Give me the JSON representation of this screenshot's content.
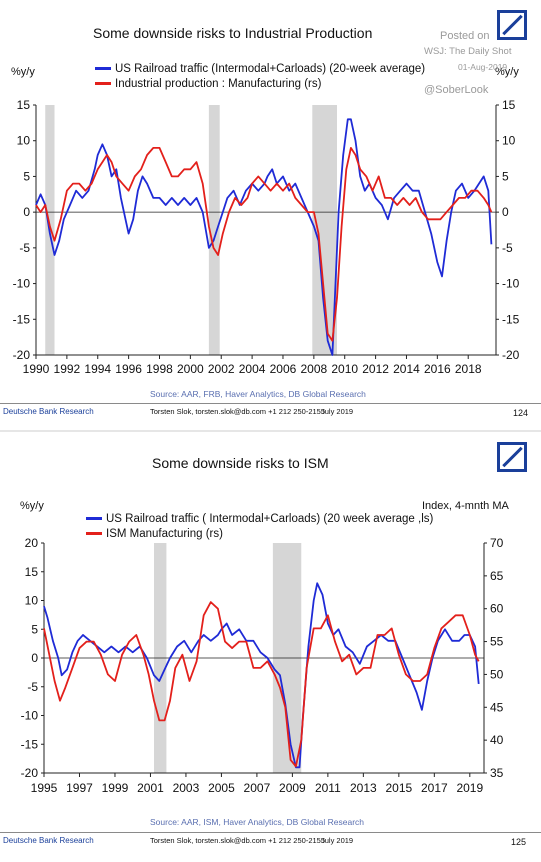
{
  "charts": [
    {
      "title": "Some downside risks to Industrial Production",
      "left_unit": "%y/y",
      "right_unit": "%y/y",
      "legend": [
        {
          "label": "US Railroad traffic (Intermodal+Carloads) (20-week average)",
          "color": "#1f2bd6"
        },
        {
          "label": "Industrial production : Manufacturing (rs)",
          "color": "#e3201b"
        }
      ],
      "source": "Source: AAR, FRB, Haver Analytics, DB Global Research",
      "footer": {
        "left": "Deutsche Bank Research",
        "middle": "Torsten Slok, torsten.slok@db.com  +1 212 250-2155",
        "date": "July 2019",
        "page": "124"
      }
    },
    {
      "title": "Some downside risks to ISM",
      "left_unit": "%y/y",
      "right_unit": "Index, 4-mnth MA",
      "legend": [
        {
          "label": "US Railroad traffic ( Intermodal+Carloads) (20 week average ,ls)",
          "color": "#1f2bd6"
        },
        {
          "label": "ISM Manufacturing (rs)",
          "color": "#e3201b"
        }
      ],
      "source": "Source: AAR, ISM, Haver Analytics, DB Global Research",
      "footer": {
        "left": "Deutsche Bank Research",
        "middle": "Torsten Slok, torsten.slok@db.com  +1 212 250-2155",
        "date": "July 2019",
        "page": "125"
      }
    }
  ],
  "watermark": {
    "line1": "Posted on",
    "line2": "WSJ: The Daily Shot",
    "line3": "01-Aug-2019",
    "line4": "@SoberLook"
  },
  "chart_data": [
    {
      "type": "line",
      "xlim": [
        1990,
        2019.8
      ],
      "ylim": [
        -20,
        15
      ],
      "ylim_right": [
        -20,
        15
      ],
      "x_ticks": [
        "1990",
        "1992",
        "1994",
        "1996",
        "1998",
        "2000",
        "2002",
        "2004",
        "2006",
        "2008",
        "2010",
        "2012",
        "2014",
        "2016",
        "2018"
      ],
      "y_ticks": [
        "-20",
        "-15",
        "-10",
        "-5",
        "0",
        "5",
        "10",
        "15"
      ],
      "y_ticks_right": [
        "-20",
        "-15",
        "-10",
        "-5",
        "0",
        "5",
        "10",
        "15"
      ],
      "recessions": [
        [
          1990.6,
          1991.2
        ],
        [
          2001.2,
          2001.9
        ],
        [
          2007.9,
          2009.5
        ]
      ],
      "series": [
        {
          "name": "US Railroad traffic (Intermodal+Carloads) (20-week average)",
          "axis": "left",
          "x": [
            1990.0,
            1990.3,
            1990.6,
            1990.9,
            1991.2,
            1991.5,
            1991.8,
            1992.2,
            1992.6,
            1993.0,
            1993.4,
            1993.8,
            1994.0,
            1994.3,
            1994.6,
            1994.9,
            1995.2,
            1995.5,
            1995.8,
            1996.0,
            1996.3,
            1996.6,
            1996.9,
            1997.2,
            1997.6,
            1998.0,
            1998.4,
            1998.8,
            1999.2,
            1999.6,
            2000.0,
            2000.4,
            2000.8,
            2001.2,
            2001.5,
            2001.8,
            2002.1,
            2002.4,
            2002.8,
            2003.2,
            2003.6,
            2004.0,
            2004.4,
            2004.8,
            2005.0,
            2005.3,
            2005.6,
            2006.0,
            2006.4,
            2006.8,
            2007.2,
            2007.6,
            2008.0,
            2008.3,
            2008.6,
            2008.9,
            2009.2,
            2009.4,
            2009.6,
            2009.9,
            2010.2,
            2010.4,
            2010.7,
            2011.0,
            2011.3,
            2011.6,
            2012.0,
            2012.4,
            2012.8,
            2013.2,
            2013.6,
            2014.0,
            2014.4,
            2014.8,
            2015.2,
            2015.6,
            2016.0,
            2016.3,
            2016.6,
            2016.9,
            2017.2,
            2017.6,
            2018.0,
            2018.4,
            2018.7,
            2019.0,
            2019.3,
            2019.5
          ],
          "y": [
            1,
            2.5,
            1,
            -3,
            -6,
            -4,
            -1,
            1,
            3,
            2,
            3,
            6,
            8,
            9.5,
            8,
            5,
            6,
            2,
            -1,
            -3,
            -1,
            3,
            5,
            4,
            2,
            2,
            1,
            2,
            1,
            2,
            1,
            2,
            0,
            -5,
            -4,
            -2,
            0,
            2,
            3,
            1,
            3,
            4,
            3,
            4,
            5,
            6,
            4,
            5,
            3,
            4,
            2,
            0,
            -2,
            -4,
            -12,
            -18,
            -20,
            -10,
            0,
            8,
            13,
            13,
            10,
            5,
            3,
            4,
            2,
            1,
            -1,
            2,
            3,
            4,
            3,
            3,
            0,
            -3,
            -7,
            -9,
            -4,
            0,
            3,
            4,
            2,
            3,
            4,
            5,
            3,
            -4.5
          ]
        },
        {
          "name": "Industrial production : Manufacturing (rs)",
          "axis": "right",
          "x": [
            1990.0,
            1990.3,
            1990.6,
            1990.9,
            1991.2,
            1991.6,
            1992.0,
            1992.4,
            1992.8,
            1993.2,
            1993.6,
            1994.0,
            1994.3,
            1994.6,
            1994.9,
            1995.2,
            1995.6,
            1996.0,
            1996.4,
            1996.8,
            1997.2,
            1997.6,
            1998.0,
            1998.4,
            1998.8,
            1999.2,
            1999.6,
            2000.0,
            2000.4,
            2000.8,
            2001.2,
            2001.5,
            2001.8,
            2002.1,
            2002.5,
            2002.9,
            2003.3,
            2003.7,
            2004.0,
            2004.4,
            2004.8,
            2005.2,
            2005.6,
            2006.0,
            2006.4,
            2006.8,
            2007.2,
            2007.6,
            2008.0,
            2008.3,
            2008.6,
            2008.9,
            2009.2,
            2009.5,
            2009.8,
            2010.1,
            2010.4,
            2010.7,
            2011.0,
            2011.4,
            2011.8,
            2012.2,
            2012.6,
            2013.0,
            2013.4,
            2013.8,
            2014.2,
            2014.6,
            2015.0,
            2015.4,
            2015.8,
            2016.2,
            2016.6,
            2017.0,
            2017.4,
            2017.8,
            2018.2,
            2018.6,
            2019.0,
            2019.3,
            2019.5
          ],
          "y": [
            1,
            0,
            1,
            -2,
            -4,
            -1,
            3,
            4,
            4,
            3,
            4,
            6,
            7,
            8,
            7,
            5,
            4,
            3,
            5,
            6,
            8,
            9,
            9,
            7,
            5,
            5,
            6,
            6,
            7,
            4,
            -2,
            -5,
            -6,
            -3,
            0,
            2,
            1,
            2,
            4,
            5,
            4,
            3,
            4,
            3,
            4,
            2,
            1,
            0,
            0,
            -3,
            -10,
            -17,
            -18,
            -12,
            -2,
            6,
            9,
            8,
            6,
            5,
            3,
            5,
            2,
            2,
            1,
            2,
            1,
            2,
            0,
            -1,
            -1,
            -1,
            0,
            1,
            2,
            2,
            3,
            3,
            2,
            1,
            0
          ]
        }
      ]
    },
    {
      "type": "line",
      "xlim": [
        1995,
        2019.8
      ],
      "ylim": [
        -20,
        20
      ],
      "ylim_right": [
        35,
        70
      ],
      "x_ticks": [
        "1995",
        "1997",
        "1999",
        "2001",
        "2003",
        "2005",
        "2007",
        "2009",
        "2011",
        "2013",
        "2015",
        "2017",
        "2019"
      ],
      "y_ticks": [
        "-20",
        "-15",
        "-10",
        "-5",
        "0",
        "5",
        "10",
        "15",
        "20"
      ],
      "y_ticks_right": [
        "35",
        "40",
        "45",
        "50",
        "55",
        "60",
        "65",
        "70"
      ],
      "recessions": [
        [
          2001.2,
          2001.9
        ],
        [
          2007.9,
          2009.5
        ]
      ],
      "series": [
        {
          "name": "US Railroad traffic ( Intermodal+Carloads) (20 week average ,ls)",
          "axis": "left",
          "x": [
            1995.0,
            1995.2,
            1995.5,
            1995.8,
            1996.0,
            1996.3,
            1996.6,
            1996.9,
            1997.2,
            1997.6,
            1998.0,
            1998.4,
            1998.8,
            1999.2,
            1999.6,
            2000.0,
            2000.4,
            2000.8,
            2001.2,
            2001.5,
            2001.8,
            2002.1,
            2002.5,
            2002.9,
            2003.3,
            2003.7,
            2004.0,
            2004.4,
            2004.8,
            2005.0,
            2005.3,
            2005.6,
            2006.0,
            2006.4,
            2006.8,
            2007.2,
            2007.6,
            2008.0,
            2008.3,
            2008.6,
            2008.9,
            2009.2,
            2009.4,
            2009.6,
            2009.9,
            2010.2,
            2010.4,
            2010.7,
            2011.0,
            2011.3,
            2011.6,
            2012.0,
            2012.4,
            2012.8,
            2013.2,
            2013.6,
            2014.0,
            2014.4,
            2014.8,
            2015.2,
            2015.6,
            2016.0,
            2016.3,
            2016.6,
            2016.9,
            2017.2,
            2017.6,
            2018.0,
            2018.4,
            2018.7,
            2019.0,
            2019.3,
            2019.5
          ],
          "y": [
            9,
            7,
            3,
            0,
            -3,
            -2,
            1,
            3,
            4,
            3,
            2,
            1,
            2,
            1,
            2,
            1,
            2,
            0,
            -3,
            -4,
            -2,
            0,
            2,
            3,
            1,
            3,
            4,
            3,
            4,
            5,
            6,
            4,
            5,
            3,
            3,
            1,
            0,
            -2,
            -3,
            -8,
            -15,
            -19,
            -19,
            -10,
            2,
            10,
            13,
            11,
            6,
            4,
            5,
            2,
            1,
            -1,
            2,
            3,
            4,
            3,
            3,
            0,
            -3,
            -6,
            -9,
            -4,
            0,
            3,
            5,
            3,
            3,
            4,
            4,
            2,
            -4.5
          ]
        },
        {
          "name": "ISM Manufacturing (rs)",
          "axis": "right",
          "x": [
            1995.0,
            1995.3,
            1995.6,
            1995.9,
            1996.2,
            1996.6,
            1997.0,
            1997.4,
            1997.8,
            1998.2,
            1998.6,
            1999.0,
            1999.4,
            1999.8,
            2000.2,
            2000.6,
            2000.9,
            2001.2,
            2001.5,
            2001.8,
            2002.1,
            2002.4,
            2002.8,
            2003.2,
            2003.6,
            2004.0,
            2004.4,
            2004.8,
            2005.2,
            2005.6,
            2006.0,
            2006.4,
            2006.8,
            2007.2,
            2007.6,
            2008.0,
            2008.3,
            2008.6,
            2008.9,
            2009.2,
            2009.5,
            2009.8,
            2010.2,
            2010.6,
            2011.0,
            2011.4,
            2011.8,
            2012.2,
            2012.6,
            2013.0,
            2013.4,
            2013.8,
            2014.2,
            2014.6,
            2015.0,
            2015.4,
            2015.8,
            2016.2,
            2016.6,
            2017.0,
            2017.4,
            2017.8,
            2018.2,
            2018.6,
            2019.0,
            2019.3,
            2019.5
          ],
          "y": [
            57,
            53,
            49,
            46,
            48,
            51,
            54,
            55,
            55,
            53,
            50,
            49,
            53,
            55,
            56,
            53,
            50,
            46,
            43,
            43,
            46,
            51,
            53,
            49,
            52,
            59,
            61,
            60,
            55,
            54,
            55,
            55,
            51,
            51,
            52,
            50,
            48,
            45,
            37,
            36,
            40,
            51,
            57,
            57,
            59,
            55,
            52,
            53,
            50,
            51,
            51,
            56,
            56,
            57,
            53,
            50,
            49,
            49,
            50,
            54,
            57,
            58,
            59,
            59,
            56,
            53,
            52
          ]
        }
      ]
    }
  ]
}
